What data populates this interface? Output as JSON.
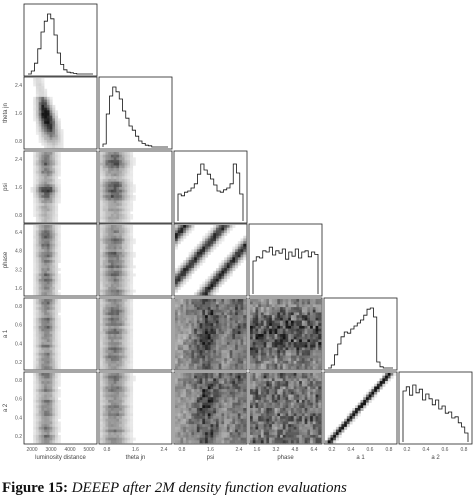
{
  "caption": {
    "label": "Figure 15:",
    "text": "DEEEP after 2M density function evaluations"
  },
  "chart_data": {
    "type": "corner",
    "parameters": [
      {
        "name": "luminosity distance",
        "ticks": [
          "2000",
          "3000",
          "4000",
          "5000"
        ]
      },
      {
        "name": "theta jn",
        "ticks": [
          "0.8",
          "1.6",
          "2.4"
        ]
      },
      {
        "name": "psi",
        "ticks": [
          "0.8",
          "1.6",
          "2.4"
        ]
      },
      {
        "name": "phase",
        "ticks": [
          "1.6",
          "3.2",
          "4.8",
          "6.4"
        ]
      },
      {
        "name": "a 1",
        "ticks": [
          "0.2",
          "0.4",
          "0.6",
          "0.8"
        ]
      },
      {
        "name": "a 2",
        "ticks": [
          "0.2",
          "0.4",
          "0.6",
          "0.8"
        ]
      }
    ],
    "row_ticks": {
      "theta jn": [
        "0.8",
        "1.6",
        "2.4"
      ],
      "psi": [
        "0.8",
        "1.6",
        "2.4"
      ],
      "phase": [
        "1.6",
        "3.2",
        "4.8",
        "6.4"
      ],
      "a 1": [
        "0.2",
        "0.4",
        "0.6",
        "0.8"
      ],
      "a 2": [
        "0.2",
        "0.4",
        "0.6",
        "0.8"
      ]
    },
    "marginal_histograms": [
      {
        "parameter": "luminosity distance",
        "heights": [
          0.0,
          0.05,
          0.18,
          0.42,
          0.7,
          0.88,
          1.0,
          0.92,
          0.65,
          0.35,
          0.16,
          0.07,
          0.03,
          0.02,
          0.01,
          0.0,
          0.0,
          0.0,
          0.0,
          0.0
        ]
      },
      {
        "parameter": "theta jn",
        "heights": [
          0.05,
          0.55,
          0.85,
          1.0,
          0.92,
          0.8,
          0.6,
          0.48,
          0.35,
          0.28,
          0.18,
          0.1,
          0.06,
          0.03,
          0.02,
          0.0,
          0.0,
          0.0,
          0.0,
          0.0
        ]
      },
      {
        "parameter": "psi",
        "heights": [
          0.45,
          0.42,
          0.48,
          0.5,
          0.55,
          0.62,
          0.78,
          0.95,
          0.85,
          0.78,
          0.7,
          0.6,
          0.5,
          0.48,
          0.52,
          0.55,
          0.62,
          0.95,
          0.8,
          0.45
        ]
      },
      {
        "parameter": "phase",
        "heights": [
          0.55,
          0.62,
          0.6,
          0.72,
          0.7,
          0.78,
          0.65,
          0.72,
          0.68,
          0.75,
          0.58,
          0.7,
          0.63,
          0.75,
          0.6,
          0.7,
          0.72,
          0.62,
          0.7,
          0.66
        ]
      },
      {
        "parameter": "a 1",
        "heights": [
          0.0,
          0.05,
          0.22,
          0.4,
          0.52,
          0.6,
          0.58,
          0.65,
          0.7,
          0.75,
          0.8,
          0.88,
          0.98,
          1.0,
          0.85,
          0.1,
          0.02,
          0.0,
          0.0,
          0.0
        ]
      },
      {
        "parameter": "a 2",
        "heights": [
          0.85,
          0.92,
          0.78,
          0.95,
          0.82,
          0.88,
          0.7,
          0.8,
          0.72,
          0.62,
          0.7,
          0.55,
          0.6,
          0.48,
          0.5,
          0.4,
          0.42,
          0.32,
          0.25,
          0.15
        ]
      }
    ],
    "grid": false,
    "colormap": "grayscale",
    "colors": {
      "ink": "#111111",
      "frame": "#222222",
      "density_dark": "#1a1a1a"
    }
  }
}
